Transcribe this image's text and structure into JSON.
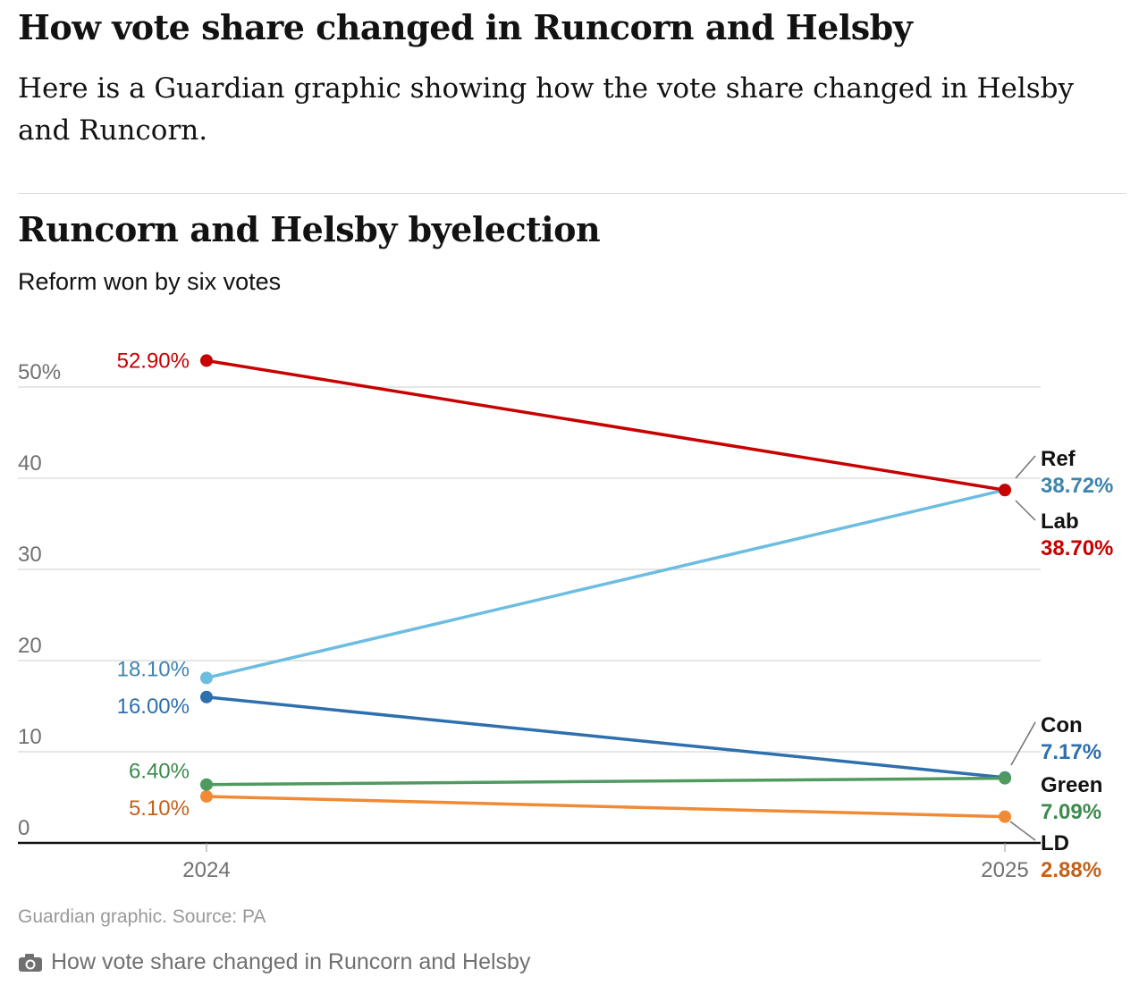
{
  "article": {
    "headline": "How vote share changed in Runcorn and Helsby",
    "intro": "Here is a Guardian graphic showing how the vote share changed in Helsby and Runcorn."
  },
  "figure": {
    "source": "Guardian graphic. Source: PA",
    "caption": "How vote share changed in Runcorn and Helsby",
    "caption_icon": "camera-icon"
  },
  "chart_data": {
    "type": "line",
    "title": "Runcorn and Helsby byelection",
    "subtitle": "Reform won by six votes",
    "x": [
      "2024",
      "2025"
    ],
    "ylim": [
      0,
      50
    ],
    "yticks": [
      {
        "value": 0,
        "label": "0"
      },
      {
        "value": 10,
        "label": "10"
      },
      {
        "value": 20,
        "label": "20"
      },
      {
        "value": 30,
        "label": "30"
      },
      {
        "value": 40,
        "label": "40"
      },
      {
        "value": 50,
        "label": "50%"
      }
    ],
    "grid": true,
    "series": [
      {
        "key": "lab",
        "name": "Lab",
        "values": [
          52.9,
          38.7
        ],
        "labels": [
          "52.90%",
          "38.70%"
        ],
        "color": "#c70000",
        "text_color": "#c70000",
        "end_label_color": "#c70000"
      },
      {
        "key": "ref",
        "name": "Ref",
        "values": [
          18.1,
          38.72
        ],
        "labels": [
          "18.10%",
          "38.72%"
        ],
        "color": "#6cbde0",
        "text_color": "#3d84ad",
        "end_label_color": "#3d84ad"
      },
      {
        "key": "con",
        "name": "Con",
        "values": [
          16.0,
          7.17
        ],
        "labels": [
          "16.00%",
          "7.17%"
        ],
        "color": "#2e6fad",
        "text_color": "#2e6fad",
        "end_label_color": "#2e6fad"
      },
      {
        "key": "green",
        "name": "Green",
        "values": [
          6.4,
          7.09
        ],
        "labels": [
          "6.40%",
          "7.09%"
        ],
        "color": "#4f9a5f",
        "text_color": "#3d8a4e",
        "end_label_color": "#3d8a4e"
      },
      {
        "key": "ld",
        "name": "LD",
        "values": [
          5.1,
          2.88
        ],
        "labels": [
          "5.10%",
          "2.88%"
        ],
        "color": "#f08a34",
        "text_color": "#c3611c",
        "end_label_color": "#c3611c"
      }
    ]
  }
}
